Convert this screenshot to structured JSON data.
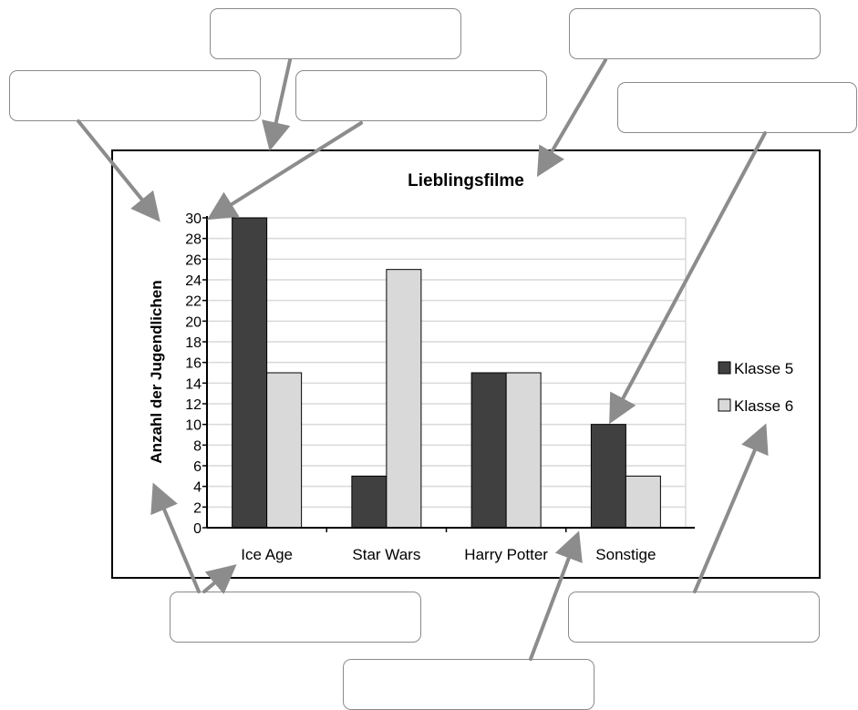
{
  "chart_data": {
    "type": "bar",
    "title": "Lieblingsfilme",
    "xlabel": "",
    "ylabel": "Anzahl der Jugendlichen",
    "ylim": [
      0,
      30
    ],
    "ytick_step": 2,
    "categories": [
      "Ice Age",
      "Star Wars",
      "Harry Potter",
      "Sonstige"
    ],
    "series": [
      {
        "name": "Klasse 5",
        "values": [
          30,
          5,
          15,
          10
        ],
        "color": "#404040"
      },
      {
        "name": "Klasse 6",
        "values": [
          15,
          25,
          15,
          5
        ],
        "color": "#d9d9d9"
      }
    ],
    "grid": "horizontal",
    "legend_position": "right"
  },
  "colors": {
    "arrow": "#8c8c8c",
    "gridline": "#d9d9d9",
    "box_border": "#8a8a8a"
  },
  "label_boxes": [
    {
      "text": ""
    },
    {
      "text": ""
    },
    {
      "text": ""
    },
    {
      "text": ""
    },
    {
      "text": ""
    },
    {
      "text": ""
    },
    {
      "text": ""
    },
    {
      "text": ""
    }
  ]
}
